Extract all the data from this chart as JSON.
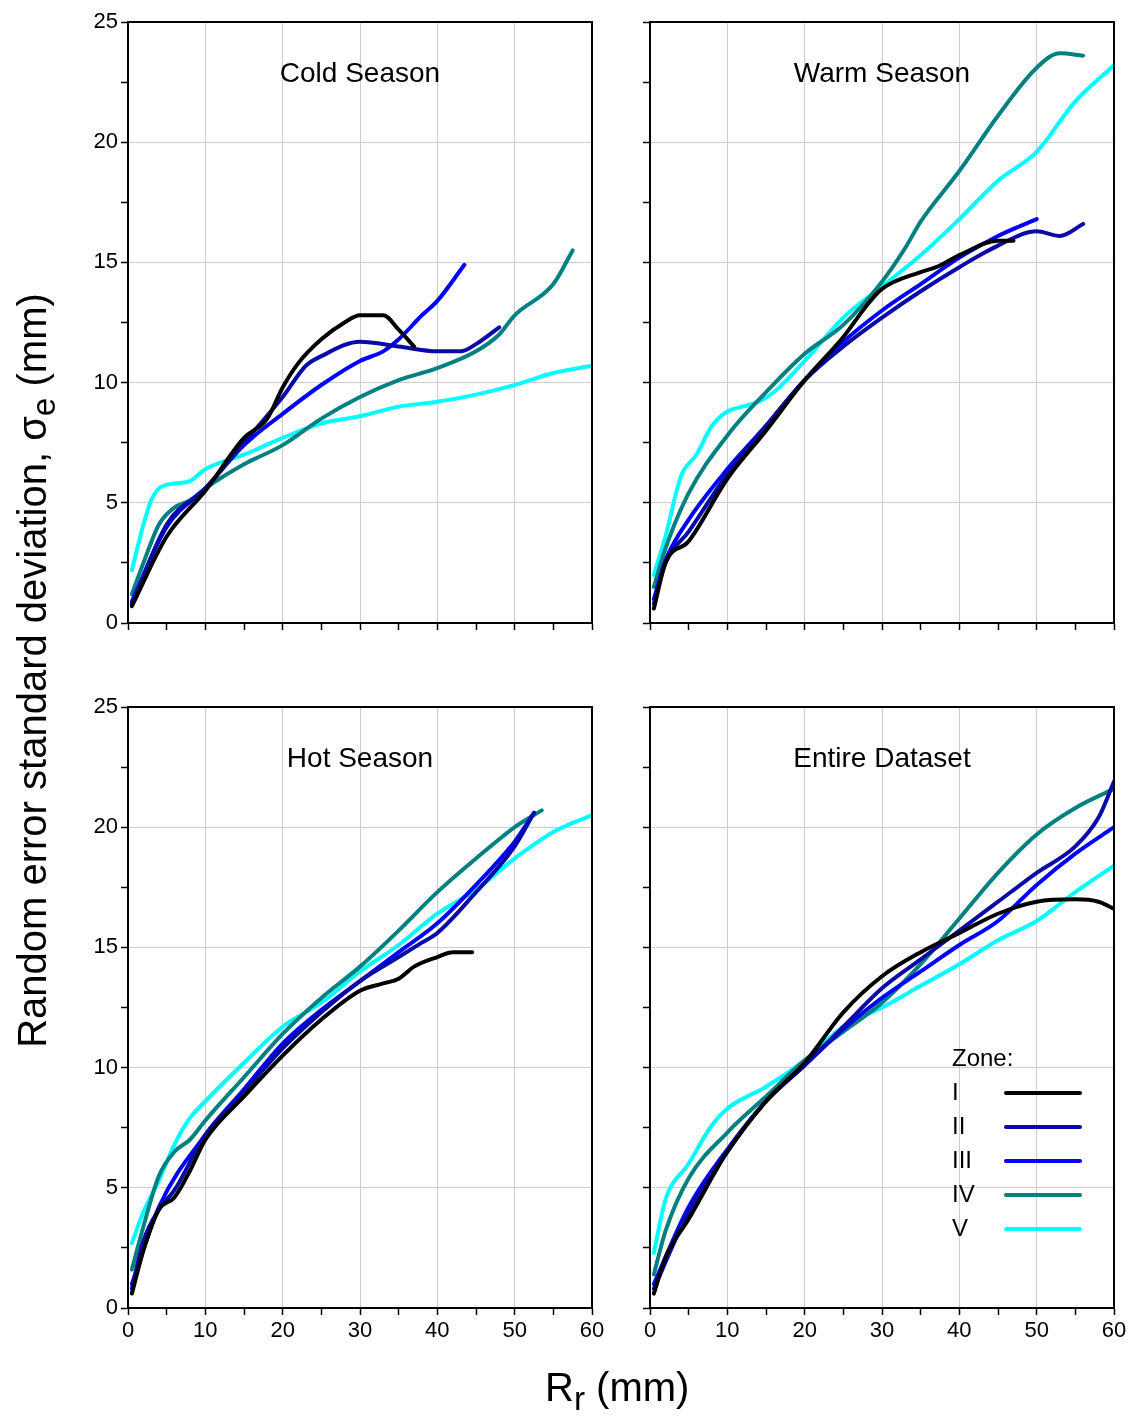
{
  "chart_data": [
    {
      "type": "line",
      "title": "Cold Season",
      "ylabel": "Random error standard deviation, σ$_{e}$ (mm)",
      "xlim": [
        0,
        60
      ],
      "ylim": [
        0,
        25
      ],
      "xticks": [
        0,
        {
          "value": 5,
          "label": null
        },
        10,
        {
          "value": 15,
          "label": null
        },
        20,
        {
          "value": 25,
          "label": null
        },
        30,
        {
          "value": 35,
          "label": null
        },
        40,
        {
          "value": 45,
          "label": null
        },
        50,
        {
          "value": 55,
          "label": null
        },
        60
      ],
      "yticks": [
        0,
        {
          "value": 2.5,
          "label": null
        },
        5,
        {
          "value": 7.5,
          "label": null
        },
        10,
        {
          "value": 12.5,
          "label": null
        },
        15,
        {
          "value": 17.5,
          "label": null
        },
        20,
        {
          "value": 22.5,
          "label": null
        },
        25
      ],
      "grid": true,
      "tick_labels": "y",
      "marker": "none",
      "series": [
        {
          "color": "#000000",
          "x": [
            0.5,
            5,
            10,
            15,
            18,
            20,
            22,
            25,
            28,
            30,
            33,
            35,
            37
          ],
          "values": [
            0.7,
            3.6,
            5.5,
            7.7,
            8.5,
            9.8,
            10.8,
            11.8,
            12.5,
            12.8,
            12.8,
            12.2,
            11.5
          ]
        },
        {
          "color": "#0a0aa8",
          "x": [
            0.5,
            5,
            10,
            15,
            20,
            23,
            25,
            30,
            35,
            40,
            43,
            45,
            48
          ],
          "values": [
            0.8,
            4.1,
            5.6,
            7.5,
            9.4,
            10.7,
            11.1,
            11.7,
            11.5,
            11.3,
            11.3,
            11.6,
            12.3
          ]
        },
        {
          "color": "#0000ff",
          "x": [
            0.5,
            5,
            10,
            15,
            20,
            25,
            30,
            33,
            35,
            38,
            40,
            43.5
          ],
          "values": [
            0.9,
            4.0,
            5.6,
            7.4,
            8.7,
            9.9,
            10.9,
            11.3,
            11.8,
            12.8,
            13.4,
            14.9
          ]
        },
        {
          "color": "#008080",
          "x": [
            0.5,
            2,
            4,
            6,
            8,
            10,
            15,
            20,
            25,
            30,
            35,
            40,
            45,
            48,
            50,
            55,
            57.5
          ],
          "values": [
            1.2,
            2.5,
            4.1,
            4.8,
            5.1,
            5.6,
            6.6,
            7.4,
            8.5,
            9.4,
            10.1,
            10.6,
            11.3,
            12.0,
            12.8,
            14.1,
            15.5
          ]
        },
        {
          "color": "#00ffff",
          "x": [
            0.5,
            2,
            3,
            4,
            6,
            8,
            10,
            15,
            20,
            25,
            30,
            35,
            40,
            45,
            50,
            55,
            60
          ],
          "values": [
            2.2,
            4.1,
            5.1,
            5.6,
            5.8,
            5.9,
            6.4,
            7.0,
            7.7,
            8.3,
            8.6,
            9.0,
            9.2,
            9.5,
            9.9,
            10.4,
            10.7
          ]
        }
      ]
    },
    {
      "type": "line",
      "title": "Warm Season",
      "xlim": [
        0,
        60
      ],
      "ylim": [
        0,
        25
      ],
      "xticks": [
        0,
        {
          "value": 5,
          "label": null
        },
        10,
        {
          "value": 15,
          "label": null
        },
        20,
        {
          "value": 25,
          "label": null
        },
        30,
        {
          "value": 35,
          "label": null
        },
        40,
        {
          "value": 45,
          "label": null
        },
        50,
        {
          "value": 55,
          "label": null
        },
        60
      ],
      "yticks": [
        0,
        {
          "value": 2.5,
          "label": null
        },
        5,
        {
          "value": 7.5,
          "label": null
        },
        10,
        {
          "value": 12.5,
          "label": null
        },
        15,
        {
          "value": 17.5,
          "label": null
        },
        20,
        {
          "value": 22.5,
          "label": null
        },
        25
      ],
      "grid": true,
      "tick_labels": false,
      "marker": "none",
      "series": [
        {
          "color": "#000000",
          "x": [
            0.5,
            2,
            5,
            10,
            15,
            20,
            25,
            28,
            30,
            35,
            37,
            40,
            45,
            47
          ],
          "values": [
            0.6,
            2.5,
            3.4,
            6.0,
            8.0,
            10.1,
            11.9,
            13.2,
            13.9,
            14.6,
            14.8,
            15.3,
            15.9,
            15.9
          ]
        },
        {
          "color": "#0a0aa8",
          "x": [
            0.5,
            2,
            5,
            10,
            15,
            20,
            25,
            30,
            35,
            40,
            45,
            50,
            53,
            56
          ],
          "values": [
            0.8,
            2.5,
            3.8,
            6.2,
            8.2,
            10.1,
            11.5,
            12.7,
            13.8,
            14.8,
            15.7,
            16.3,
            16.1,
            16.6
          ]
        },
        {
          "color": "#0000ff",
          "x": [
            0.5,
            2,
            5,
            10,
            15,
            20,
            25,
            30,
            35,
            40,
            45,
            50
          ],
          "values": [
            1.0,
            2.6,
            4.3,
            6.4,
            8.2,
            10.1,
            11.7,
            13.0,
            14.1,
            15.2,
            16.1,
            16.8
          ]
        },
        {
          "color": "#008080",
          "x": [
            0.5,
            2,
            5,
            10,
            15,
            20,
            25,
            30,
            33,
            35,
            40,
            45,
            50,
            53,
            56
          ],
          "values": [
            1.5,
            3.1,
            5.4,
            7.8,
            9.6,
            11.2,
            12.4,
            14.2,
            15.6,
            16.7,
            18.8,
            21.1,
            23.1,
            23.7,
            23.6
          ]
        },
        {
          "color": "#00ffff",
          "x": [
            0.5,
            2,
            4,
            6,
            8,
            10,
            12,
            14,
            16,
            20,
            25,
            30,
            35,
            40,
            45,
            50,
            55,
            60
          ],
          "values": [
            2.0,
            3.6,
            6.1,
            7.0,
            8.2,
            8.8,
            9.0,
            9.2,
            9.6,
            10.9,
            12.7,
            14.0,
            15.3,
            16.8,
            18.4,
            19.6,
            21.7,
            23.2
          ]
        }
      ]
    },
    {
      "type": "line",
      "title": "Hot Season",
      "xlim": [
        0,
        60
      ],
      "ylim": [
        0,
        25
      ],
      "xticks": [
        0,
        {
          "value": 5,
          "label": null
        },
        10,
        {
          "value": 15,
          "label": null
        },
        20,
        {
          "value": 25,
          "label": null
        },
        30,
        {
          "value": 35,
          "label": null
        },
        40,
        {
          "value": 45,
          "label": null
        },
        50,
        {
          "value": 55,
          "label": null
        },
        60
      ],
      "yticks": [
        0,
        {
          "value": 2.5,
          "label": null
        },
        5,
        {
          "value": 7.5,
          "label": null
        },
        10,
        {
          "value": 12.5,
          "label": null
        },
        15,
        {
          "value": 17.5,
          "label": null
        },
        20,
        {
          "value": 22.5,
          "label": null
        },
        25
      ],
      "grid": true,
      "marker": "none",
      "series": [
        {
          "color": "#000000",
          "x": [
            0.5,
            2,
            4,
            6,
            8,
            10,
            15,
            20,
            25,
            30,
            33,
            35,
            37,
            40,
            42,
            44.5
          ],
          "values": [
            0.6,
            2.4,
            4.1,
            4.6,
            5.7,
            7.0,
            8.8,
            10.5,
            12.0,
            13.2,
            13.5,
            13.7,
            14.2,
            14.6,
            14.8,
            14.8
          ]
        },
        {
          "color": "#0a0aa8",
          "x": [
            0.5,
            2,
            4,
            6,
            10,
            15,
            20,
            25,
            30,
            35,
            38,
            40,
            45,
            50,
            52.5
          ],
          "values": [
            0.8,
            2.8,
            4.1,
            4.9,
            7.2,
            9.0,
            10.8,
            12.3,
            13.6,
            14.6,
            15.2,
            15.6,
            17.3,
            19.2,
            20.6
          ]
        },
        {
          "color": "#0000ff",
          "x": [
            0.5,
            4,
            10,
            15,
            20,
            25,
            30,
            35,
            40,
            45,
            50,
            52.5
          ],
          "values": [
            1.0,
            4.2,
            7.2,
            9.1,
            11.0,
            12.4,
            13.6,
            14.8,
            16.0,
            17.6,
            19.4,
            20.6
          ]
        },
        {
          "color": "#008080",
          "x": [
            0.5,
            2,
            4,
            6,
            8,
            10,
            15,
            20,
            25,
            30,
            35,
            40,
            45,
            50,
            53.5
          ],
          "values": [
            1.6,
            3.4,
            5.5,
            6.5,
            7.0,
            7.8,
            9.6,
            11.4,
            12.9,
            14.2,
            15.7,
            17.3,
            18.7,
            20.0,
            20.7
          ]
        },
        {
          "color": "#00ffff",
          "x": [
            0.5,
            2,
            4,
            6,
            8,
            10,
            15,
            20,
            25,
            30,
            35,
            40,
            45,
            50,
            55,
            60
          ],
          "values": [
            2.7,
            4.0,
            5.3,
            6.8,
            7.9,
            8.6,
            10.2,
            11.7,
            12.7,
            14.0,
            15.1,
            16.4,
            17.4,
            18.7,
            19.8,
            20.5
          ]
        }
      ]
    },
    {
      "type": "line",
      "title": "Entire Dataset",
      "xlabel": "R$_{r}$ (mm)",
      "legend_title": "Zone:",
      "legend": "bottom right",
      "xlim": [
        0,
        60
      ],
      "ylim": [
        0,
        25
      ],
      "xticks": [
        0,
        {
          "value": 5,
          "label": null
        },
        10,
        {
          "value": 15,
          "label": null
        },
        20,
        {
          "value": 25,
          "label": null
        },
        30,
        {
          "value": 35,
          "label": null
        },
        40,
        {
          "value": 45,
          "label": null
        },
        50,
        {
          "value": 55,
          "label": null
        },
        60
      ],
      "yticks": [
        0,
        {
          "value": 2.5,
          "label": null
        },
        5,
        {
          "value": 7.5,
          "label": null
        },
        10,
        {
          "value": 12.5,
          "label": null
        },
        15,
        {
          "value": 17.5,
          "label": null
        },
        20,
        {
          "value": 22.5,
          "label": null
        },
        25
      ],
      "grid": true,
      "tick_labels": "x",
      "marker": "none",
      "series": [
        {
          "name": "I",
          "color": "#000000",
          "x": [
            0.5,
            2,
            5,
            10,
            15,
            20,
            25,
            30,
            35,
            40,
            45,
            50,
            55,
            58,
            60
          ],
          "values": [
            0.6,
            2.1,
            3.7,
            6.5,
            8.6,
            10.2,
            12.3,
            13.8,
            14.8,
            15.6,
            16.4,
            16.9,
            17.0,
            16.9,
            16.6
          ]
        },
        {
          "name": "II",
          "color": "#0a0aa8",
          "x": [
            0.5,
            5,
            10,
            15,
            20,
            25,
            30,
            35,
            40,
            45,
            50,
            55,
            58,
            60
          ],
          "values": [
            0.8,
            4.0,
            6.5,
            8.6,
            10.1,
            11.7,
            13.3,
            14.5,
            15.7,
            16.9,
            18.1,
            19.2,
            20.4,
            21.9
          ]
        },
        {
          "name": "III",
          "color": "#0000ff",
          "x": [
            0.5,
            5,
            10,
            15,
            20,
            25,
            30,
            35,
            40,
            45,
            50,
            55,
            60
          ],
          "values": [
            1.0,
            4.2,
            6.6,
            8.6,
            10.1,
            11.6,
            12.9,
            14.0,
            15.1,
            16.1,
            17.6,
            18.9,
            20.0
          ]
        },
        {
          "name": "IV",
          "color": "#008080",
          "x": [
            0.5,
            2,
            5,
            10,
            15,
            20,
            25,
            30,
            35,
            40,
            45,
            50,
            55,
            60
          ],
          "values": [
            1.4,
            3.2,
            5.4,
            7.3,
            8.8,
            10.3,
            11.5,
            12.7,
            14.3,
            16.2,
            18.1,
            19.7,
            20.8,
            21.6
          ]
        },
        {
          "name": "V",
          "color": "#00ffff",
          "x": [
            0.5,
            2,
            5,
            8,
            10,
            12,
            15,
            20,
            25,
            30,
            35,
            40,
            45,
            50,
            55,
            60
          ],
          "values": [
            2.3,
            4.5,
            6.0,
            7.6,
            8.3,
            8.7,
            9.2,
            10.3,
            11.7,
            12.5,
            13.4,
            14.3,
            15.3,
            16.1,
            17.3,
            18.4
          ]
        }
      ]
    }
  ]
}
